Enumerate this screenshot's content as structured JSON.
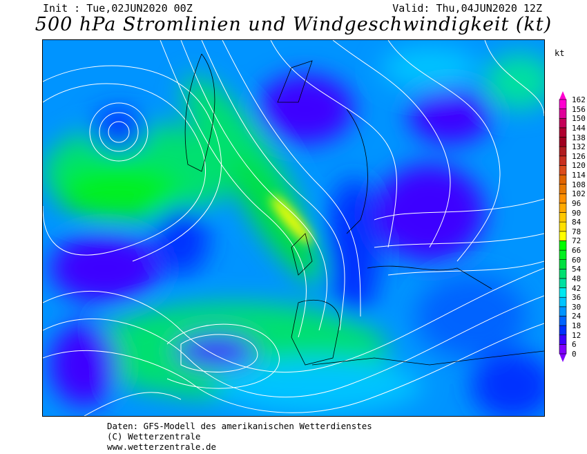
{
  "header": {
    "init": "Init : Tue,02JUN2020 00Z",
    "valid": "Valid: Thu,04JUN2020 12Z",
    "title": "500 hPa Stromlinien und Windgeschwindigkeit (kt)"
  },
  "legend": {
    "unit": "kt",
    "levels": [
      0,
      6,
      12,
      18,
      24,
      30,
      36,
      42,
      48,
      54,
      60,
      66,
      72,
      78,
      84,
      90,
      96,
      102,
      108,
      114,
      120,
      126,
      132,
      138,
      144,
      150,
      156,
      162
    ],
    "colors": [
      "#8000ff",
      "#3c00ff",
      "#0030ff",
      "#0064ff",
      "#0094ff",
      "#00c4ff",
      "#00e8f0",
      "#00e0a0",
      "#00e070",
      "#00e040",
      "#00f020",
      "#00ff00",
      "#ffff00",
      "#ffe000",
      "#ffc800",
      "#ffaa00",
      "#ff9000",
      "#e87800",
      "#e06400",
      "#dc4c1c",
      "#c83020",
      "#b01c20",
      "#a00020",
      "#b00030",
      "#c40058",
      "#e0009a",
      "#ff00d0"
    ]
  },
  "footer": {
    "line1": "Daten: GFS-Modell des amerikanischen Wetterdienstes",
    "line2": "(C) Wetterzentrale",
    "line3": "www.wetterzentrale.de"
  }
}
